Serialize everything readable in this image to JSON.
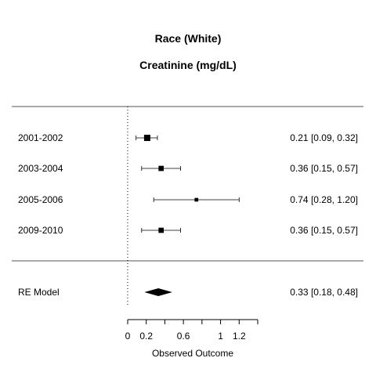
{
  "chart_data": {
    "type": "forest",
    "title": "Race (White)",
    "subtitle": "Creatinine (mg/dL)",
    "xlabel": "Observed Outcome",
    "xlim": [
      0,
      1.4
    ],
    "xticks": [
      "0",
      "0.2",
      "0.6",
      "1",
      "1.2"
    ],
    "xtick_values": [
      0,
      0.2,
      0.6,
      1.0,
      1.2
    ],
    "reference_line": 0,
    "studies": [
      {
        "label": "2001-2002",
        "estimate": 0.21,
        "lower": 0.09,
        "upper": 0.32,
        "text": "0.21 [0.09, 0.32]",
        "weight": 1.0
      },
      {
        "label": "2003-2004",
        "estimate": 0.36,
        "lower": 0.15,
        "upper": 0.57,
        "text": "0.36 [0.15, 0.57]",
        "weight": 0.6
      },
      {
        "label": "2005-2006",
        "estimate": 0.74,
        "lower": 0.28,
        "upper": 1.2,
        "text": "0.74 [0.28, 1.20]",
        "weight": 0.2
      },
      {
        "label": "2009-2010",
        "estimate": 0.36,
        "lower": 0.15,
        "upper": 0.57,
        "text": "0.36 [0.15, 0.57]",
        "weight": 0.6
      }
    ],
    "summary": {
      "label": "RE Model",
      "estimate": 0.33,
      "lower": 0.18,
      "upper": 0.48,
      "text": "0.33 [0.18, 0.48]"
    }
  }
}
